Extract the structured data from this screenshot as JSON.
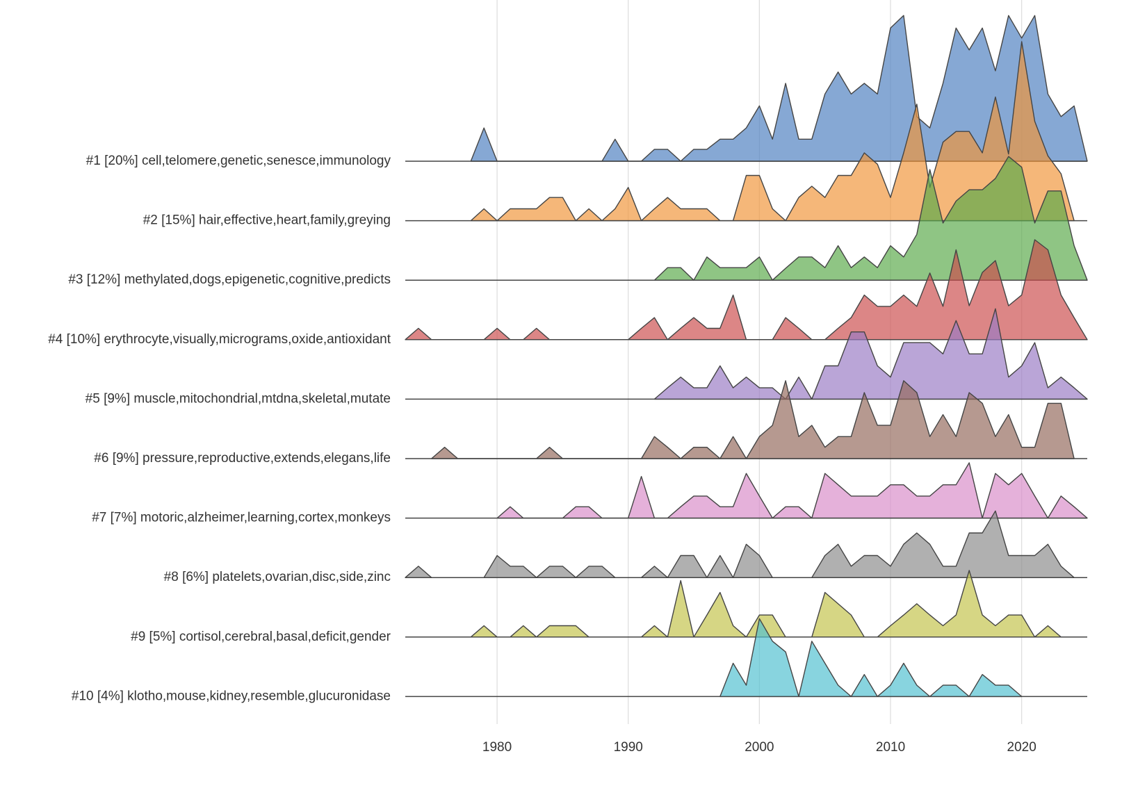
{
  "chart_data": {
    "type": "ridgeline",
    "xlim": [
      1973,
      2025
    ],
    "xticks": [
      1980,
      1990,
      2000,
      2010,
      2020
    ],
    "grid": true,
    "series": [
      {
        "name": "#1 [20%] cell,telomere,genetic,senesce,immunology",
        "color": "#4c7fbf",
        "x": [
          1978,
          1979,
          1980,
          1988,
          1989,
          1990,
          1991,
          1992,
          1993,
          1994,
          1995,
          1996,
          1997,
          1998,
          1999,
          2000,
          2001,
          2002,
          2003,
          2004,
          2005,
          2006,
          2007,
          2008,
          2009,
          2010,
          2011,
          2012,
          2013,
          2014,
          2015,
          2016,
          2017,
          2018,
          2019,
          2020,
          2021,
          2022,
          2023,
          2024,
          2025
        ],
        "values": [
          0,
          0.56,
          0,
          0,
          0.37,
          0,
          0,
          0.2,
          0.2,
          0,
          0.2,
          0.2,
          0.37,
          0.37,
          0.56,
          0.93,
          0.37,
          1.31,
          0.37,
          0.37,
          1.13,
          1.5,
          1.13,
          1.31,
          1.13,
          2.24,
          2.45,
          0.75,
          0.56,
          1.31,
          2.24,
          1.87,
          2.24,
          1.52,
          2.45,
          2.07,
          2.45,
          1.13,
          0.75,
          0.93,
          0
        ]
      },
      {
        "name": "#2 [15%] hair,effective,heart,family,greying",
        "color": "#f0953a",
        "x": [
          1978,
          1979,
          1980,
          1981,
          1982,
          1983,
          1984,
          1985,
          1986,
          1987,
          1988,
          1989,
          1990,
          1991,
          1992,
          1993,
          1994,
          1995,
          1996,
          1997,
          1998,
          1999,
          2000,
          2001,
          2002,
          2003,
          2004,
          2005,
          2006,
          2007,
          2008,
          2009,
          2010,
          2011,
          2012,
          2013,
          2014,
          2015,
          2016,
          2017,
          2018,
          2019,
          2020,
          2021,
          2022,
          2023,
          2024
        ],
        "values": [
          0,
          0.2,
          0,
          0.2,
          0.2,
          0.2,
          0.39,
          0.39,
          0,
          0.2,
          0,
          0.2,
          0.56,
          0,
          0.2,
          0.39,
          0.2,
          0.2,
          0.2,
          0,
          0,
          0.76,
          0.76,
          0.2,
          0,
          0.39,
          0.58,
          0.39,
          0.76,
          0.76,
          1.14,
          0.95,
          0.39,
          1.14,
          1.96,
          0.56,
          1.32,
          1.5,
          1.5,
          1.14,
          2.08,
          1.12,
          3.01,
          1.67,
          1.09,
          0.79,
          0
        ]
      },
      {
        "name": "#3 [12%] methylated,dogs,epigenetic,cognitive,predicts",
        "color": "#5aaa4a",
        "x": [
          1992,
          1993,
          1994,
          1995,
          1996,
          1997,
          1998,
          1999,
          2000,
          2001,
          2002,
          2003,
          2004,
          2005,
          2006,
          2007,
          2008,
          2009,
          2010,
          2011,
          2012,
          2013,
          2014,
          2015,
          2016,
          2017,
          2018,
          2019,
          2020,
          2021,
          2022,
          2023,
          2024,
          2025
        ],
        "values": [
          0,
          0.21,
          0.21,
          0,
          0.39,
          0.21,
          0.21,
          0.21,
          0.39,
          0,
          0.2,
          0.39,
          0.39,
          0.21,
          0.58,
          0.21,
          0.39,
          0.21,
          0.58,
          0.39,
          0.77,
          1.86,
          0.96,
          1.33,
          1.52,
          1.52,
          1.71,
          2.08,
          1.9,
          0.96,
          1.5,
          1.5,
          0.58,
          0
        ]
      },
      {
        "name": "#4 [10%] erythrocyte,visually,micrograms,oxide,antioxidant",
        "color": "#cc4c4c",
        "x": [
          1973,
          1974,
          1975,
          1976,
          1977,
          1978,
          1979,
          1980,
          1981,
          1982,
          1983,
          1984,
          1985,
          1986,
          1987,
          1988,
          1989,
          1990,
          1991,
          1992,
          1993,
          1994,
          1995,
          1996,
          1997,
          1998,
          1999,
          2000,
          2001,
          2002,
          2003,
          2004,
          2005,
          2006,
          2007,
          2008,
          2009,
          2010,
          2011,
          2012,
          2013,
          2014,
          2015,
          2016,
          2017,
          2018,
          2019,
          2020,
          2021,
          2022,
          2023,
          2024,
          2025
        ],
        "values": [
          0,
          0.19,
          0,
          0,
          0,
          0,
          0,
          0.19,
          0,
          0,
          0.19,
          0,
          0,
          0,
          0,
          0,
          0,
          0,
          0.19,
          0.37,
          0,
          0.19,
          0.37,
          0.19,
          0.19,
          0.75,
          0,
          0,
          0,
          0.37,
          0.19,
          0,
          0,
          0.19,
          0.37,
          0.75,
          0.56,
          0.56,
          0.75,
          0.56,
          1.12,
          0.56,
          1.51,
          0.57,
          1.13,
          1.33,
          0.57,
          0.75,
          1.68,
          1.51,
          0.75,
          0.37,
          0
        ]
      },
      {
        "name": "#5 [9%] muscle,mitochondrial,mtdna,skeletal,mutate",
        "color": "#9a7ac4",
        "x": [
          1992,
          1993,
          1994,
          1995,
          1996,
          1997,
          1998,
          1999,
          2000,
          2001,
          2002,
          2003,
          2004,
          2005,
          2006,
          2007,
          2008,
          2009,
          2010,
          2011,
          2012,
          2013,
          2014,
          2015,
          2016,
          2017,
          2018,
          2019,
          2020,
          2021,
          2022,
          2023,
          2024,
          2025
        ],
        "values": [
          0,
          0.19,
          0.37,
          0.19,
          0.19,
          0.56,
          0.19,
          0.37,
          0.19,
          0.19,
          0,
          0.37,
          0,
          0.56,
          0.56,
          1.13,
          1.13,
          0.56,
          0.37,
          0.95,
          0.95,
          0.95,
          0.76,
          1.32,
          0.76,
          0.76,
          1.52,
          0.37,
          0.56,
          0.95,
          0.19,
          0.37,
          0.19,
          0
        ]
      },
      {
        "name": "#6 [9%] pressure,reproductive,extends,elegans,life",
        "color": "#94695c",
        "x": [
          1975,
          1976,
          1977,
          1978,
          1979,
          1980,
          1981,
          1982,
          1983,
          1984,
          1985,
          1986,
          1987,
          1988,
          1989,
          1990,
          1991,
          1992,
          1993,
          1994,
          1995,
          1996,
          1997,
          1998,
          1999,
          2000,
          2001,
          2002,
          2003,
          2004,
          2005,
          2006,
          2007,
          2008,
          2009,
          2010,
          2011,
          2012,
          2013,
          2014,
          2015,
          2016,
          2017,
          2018,
          2019,
          2020,
          2021,
          2022,
          2023,
          2024
        ],
        "values": [
          0,
          0.19,
          0,
          0,
          0,
          0,
          0,
          0,
          0,
          0.19,
          0,
          0,
          0,
          0,
          0,
          0,
          0,
          0.37,
          0.19,
          0,
          0.19,
          0.19,
          0,
          0.37,
          0,
          0.37,
          0.56,
          1.31,
          0.37,
          0.56,
          0.19,
          0.37,
          0.37,
          1.11,
          0.56,
          0.56,
          1.31,
          1.11,
          0.37,
          0.74,
          0.37,
          1.11,
          0.93,
          0.37,
          0.74,
          0.19,
          0.19,
          0.93,
          0.93,
          0
        ]
      },
      {
        "name": "#7 [7%] motoric,alzheimer,learning,cortex,monkeys",
        "color": "#d98cc8",
        "x": [
          1980,
          1981,
          1982,
          1983,
          1984,
          1985,
          1986,
          1987,
          1988,
          1989,
          1990,
          1991,
          1992,
          1993,
          1994,
          1995,
          1996,
          1997,
          1998,
          1999,
          2000,
          2001,
          2002,
          2003,
          2004,
          2005,
          2006,
          2007,
          2008,
          2009,
          2010,
          2011,
          2012,
          2013,
          2014,
          2015,
          2016,
          2017,
          2018,
          2019,
          2020,
          2021,
          2022,
          2023,
          2024,
          2025
        ],
        "values": [
          0,
          0.19,
          0,
          0,
          0,
          0,
          0.19,
          0.19,
          0,
          0,
          0,
          0.7,
          0,
          0,
          0.19,
          0.37,
          0.37,
          0.19,
          0.19,
          0.75,
          0.37,
          0,
          0.19,
          0.19,
          0,
          0.75,
          0.56,
          0.37,
          0.37,
          0.37,
          0.56,
          0.56,
          0.37,
          0.37,
          0.56,
          0.56,
          0.93,
          0,
          0.75,
          0.56,
          0.75,
          0.37,
          0,
          0.37,
          0.19,
          0
        ]
      },
      {
        "name": "#8 [6%] platelets,ovarian,disc,side,zinc",
        "color": "#8a8a8a",
        "x": [
          1973,
          1974,
          1975,
          1976,
          1977,
          1978,
          1979,
          1980,
          1981,
          1982,
          1983,
          1984,
          1985,
          1986,
          1987,
          1988,
          1989,
          1990,
          1991,
          1992,
          1993,
          1994,
          1995,
          1996,
          1997,
          1998,
          1999,
          2000,
          2001,
          2002,
          2003,
          2004,
          2005,
          2006,
          2007,
          2008,
          2009,
          2010,
          2011,
          2012,
          2013,
          2014,
          2015,
          2016,
          2017,
          2018,
          2019,
          2020,
          2021,
          2022,
          2023,
          2024
        ],
        "values": [
          0,
          0.19,
          0,
          0,
          0,
          0,
          0,
          0.37,
          0.19,
          0.19,
          0,
          0.19,
          0.19,
          0,
          0.19,
          0.19,
          0,
          0,
          0,
          0.19,
          0,
          0.37,
          0.37,
          0,
          0.37,
          0,
          0.56,
          0.37,
          0,
          0,
          0,
          0,
          0.37,
          0.56,
          0.19,
          0.37,
          0.37,
          0.19,
          0.56,
          0.75,
          0.56,
          0.19,
          0.19,
          0.75,
          0.75,
          1.12,
          0.37,
          0.37,
          0.37,
          0.56,
          0.19,
          0
        ]
      },
      {
        "name": "#9 [5%] cortisol,cerebral,basal,deficit,gender",
        "color": "#c2c24a",
        "x": [
          1978,
          1979,
          1980,
          1981,
          1982,
          1983,
          1984,
          1985,
          1986,
          1987,
          1988,
          1989,
          1990,
          1991,
          1992,
          1993,
          1994,
          1995,
          1996,
          1997,
          1998,
          1999,
          2000,
          2001,
          2002,
          2003,
          2004,
          2005,
          2006,
          2007,
          2008,
          2009,
          2010,
          2011,
          2012,
          2013,
          2014,
          2015,
          2016,
          2017,
          2018,
          2019,
          2020,
          2021,
          2022,
          2023
        ],
        "values": [
          0,
          0.19,
          0,
          0,
          0.19,
          0,
          0.19,
          0.19,
          0.19,
          0,
          0,
          0,
          0,
          0,
          0.19,
          0,
          0.95,
          0,
          0.37,
          0.75,
          0.19,
          0,
          0.37,
          0.37,
          0,
          0,
          0,
          0.75,
          0.56,
          0.37,
          0,
          0,
          0.19,
          0.37,
          0.56,
          0.37,
          0.19,
          0.37,
          1.12,
          0.37,
          0.19,
          0.37,
          0.37,
          0,
          0.19,
          0
        ]
      },
      {
        "name": "#10 [4%] klotho,mouse,kidney,resemble,glucuronidase",
        "color": "#4fc0d0",
        "x": [
          1997,
          1998,
          1999,
          2000,
          2001,
          2002,
          2003,
          2004,
          2005,
          2006,
          2007,
          2008,
          2009,
          2010,
          2011,
          2012,
          2013,
          2014,
          2015,
          2016,
          2017,
          2018,
          2019,
          2020
        ],
        "values": [
          0,
          0.56,
          0.19,
          1.31,
          0.93,
          0.75,
          0,
          0.93,
          0.56,
          0.19,
          0,
          0.37,
          0,
          0.19,
          0.56,
          0.19,
          0,
          0.19,
          0.19,
          0,
          0.37,
          0.19,
          0.19,
          0
        ]
      }
    ]
  }
}
